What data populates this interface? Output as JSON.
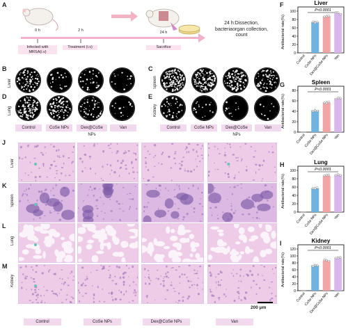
{
  "panel_labels": [
    "A",
    "B",
    "C",
    "D",
    "E",
    "F",
    "G",
    "H",
    "I",
    "J",
    "K",
    "L",
    "M"
  ],
  "timeline": {
    "t0": "0 h",
    "t1": "2 h",
    "t2": "24 h",
    "step1": "Infected with MRSA(i.v)",
    "step2": "Treatment (i.v)",
    "step3": "Sacrifice",
    "note": "24 h:Dissection, bacteriaorgan collection, count"
  },
  "plates": {
    "rows": [
      {
        "label": "Liver",
        "densities": [
          0.45,
          0.12,
          0.18,
          0.08
        ]
      },
      {
        "label": "Spleen",
        "densities": [
          0.85,
          0.75,
          0.62,
          0.38
        ]
      },
      {
        "label": "Lung",
        "densities": [
          0.55,
          0.6,
          0.28,
          0.1
        ]
      },
      {
        "label": "Kidney",
        "densities": [
          0.25,
          0.1,
          0.07,
          0.05
        ]
      }
    ],
    "group_labels": [
      "Control",
      "CoSe NPs",
      "Dex@CoSe NPs",
      "Van"
    ]
  },
  "histology": {
    "organs": [
      "Liver",
      "Spleen",
      "Lung",
      "Kidney"
    ],
    "groups": [
      "Control",
      "CoSe NPs",
      "Dex@CoSe NPs",
      "Van"
    ],
    "scale_bar": "200 μm"
  },
  "chart_data": [
    {
      "type": "bar",
      "title": "Liver",
      "categories": [
        "Control",
        "CoSe NPs",
        "Dex@CoSe NPs",
        "Van"
      ],
      "values": [
        0,
        74,
        88,
        95
      ],
      "ylabel": "Antibacterial rate(%)",
      "ylim": [
        0,
        100
      ],
      "yticks": [
        0,
        20,
        40,
        60,
        80,
        100
      ],
      "annotation": "P<0.0001"
    },
    {
      "type": "bar",
      "title": "Spleen",
      "categories": [
        "Control",
        "CoSe NPs",
        "Dex@CoSe NPs",
        "Van"
      ],
      "values": [
        0,
        42,
        57,
        65
      ],
      "ylabel": "Antibacterial rate(%)",
      "ylim": [
        0,
        80
      ],
      "yticks": [
        0,
        20,
        40,
        60,
        80
      ],
      "annotation": "P<0.0001"
    },
    {
      "type": "bar",
      "title": "Lung",
      "categories": [
        "Control",
        "CoSe NPs",
        "Dex@CoSe NPs",
        "Van"
      ],
      "values": [
        0,
        57,
        87,
        90
      ],
      "ylabel": "Antibacterial rate(%)",
      "ylim": [
        0,
        100
      ],
      "yticks": [
        0,
        20,
        40,
        60,
        80,
        100
      ],
      "annotation": "P<0.0001"
    },
    {
      "type": "bar",
      "title": "Kidney",
      "categories": [
        "Control",
        "CoSe NPs",
        "Dex@CoSe NPs",
        "Van"
      ],
      "values": [
        0,
        73,
        87,
        95
      ],
      "ylabel": "Antibacterial rate(%)",
      "ylim": [
        0,
        120
      ],
      "yticks": [
        0,
        20,
        40,
        60,
        80,
        100,
        120
      ],
      "annotation": "P<0.0001"
    }
  ],
  "colors": {
    "control": "#cfcfcf",
    "cose": "#6fb4e0",
    "dex": "#f2a5a7",
    "van": "#d7b7ec",
    "chip": "#f3d9ee"
  }
}
